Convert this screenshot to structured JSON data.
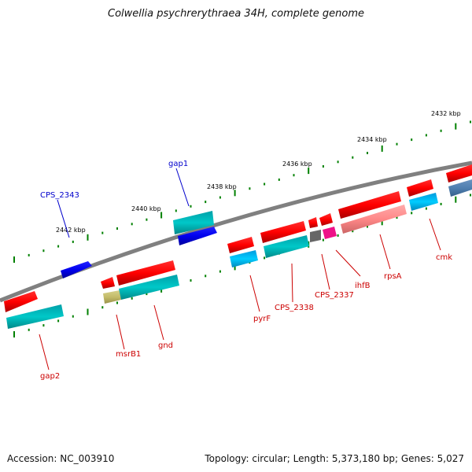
{
  "header": {
    "title": "Colwellia psychrerythraea 34H, complete genome"
  },
  "footer": {
    "accession": "Accession: NC_003910",
    "info": "Topology: circular; Length: 5,373,180 bp; Genes: 5,027"
  },
  "scale_labels": [
    "2432 kbp",
    "2434 kbp",
    "2436 kbp",
    "2438 kbp",
    "2440 kbp",
    "2442 kbp"
  ],
  "gene_labels": [
    "gap1",
    "CPS_2343",
    "gap2",
    "msrB1",
    "gnd",
    "pyrF",
    "CPS_2338",
    "CPS_2337",
    "ihfB",
    "rpsA",
    "cmk"
  ],
  "colors": {
    "forward_gene": "#ff0000",
    "reverse_gene": "#00bbcc",
    "highlight_gene": "#0000ee",
    "backbone": "#808080",
    "tick": "#008000",
    "label_red": "#cc0000",
    "label_blue": "#0000cc"
  }
}
